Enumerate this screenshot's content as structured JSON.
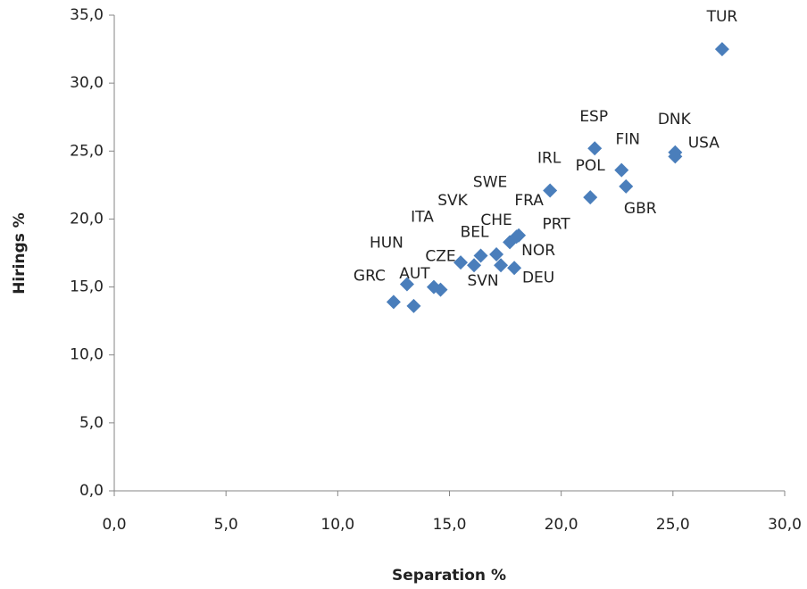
{
  "chart_data": {
    "type": "scatter",
    "x_label": "Separation %",
    "y_label": "Hirings %",
    "color": "#4a7ebb",
    "labels": [
      "GRC",
      "AUT",
      "HUN",
      "ITA",
      "CZE",
      "SVK",
      "SVN",
      "BEL",
      "CHE",
      "NOR",
      "DEU",
      "SWE",
      "FRA",
      "PRT",
      "IRL",
      "POL",
      "ESP",
      "FIN",
      "GBR",
      "DNK",
      "USA",
      "TUR"
    ],
    "x": [
      12.5,
      13.4,
      13.1,
      14.3,
      14.6,
      15.5,
      16.1,
      16.4,
      17.1,
      17.3,
      17.9,
      17.7,
      18.0,
      18.1,
      19.5,
      21.3,
      21.5,
      22.7,
      22.9,
      25.1,
      25.1,
      27.2
    ],
    "values": [
      13.9,
      13.6,
      15.2,
      15.0,
      14.8,
      16.8,
      16.6,
      17.3,
      17.4,
      16.6,
      16.4,
      18.3,
      18.7,
      18.8,
      22.1,
      21.6,
      25.2,
      23.6,
      22.4,
      24.9,
      24.6,
      32.5
    ],
    "xlim": [
      0,
      30
    ],
    "xticks": [
      {
        "value": 0,
        "label": "0,0"
      },
      {
        "value": 5,
        "label": "5,0"
      },
      {
        "value": 10,
        "label": "10,0"
      },
      {
        "value": 15,
        "label": "15,0"
      },
      {
        "value": 20,
        "label": "20,0"
      },
      {
        "value": 25,
        "label": "25,0"
      },
      {
        "value": 30,
        "label": "30,0"
      }
    ],
    "ylim": [
      0,
      35
    ],
    "yticks": [
      {
        "value": 0,
        "label": "0,0"
      },
      {
        "value": 5,
        "label": "5,0"
      },
      {
        "value": 10,
        "label": "10,0"
      },
      {
        "value": 15,
        "label": "15,0"
      },
      {
        "value": 20,
        "label": "20,0"
      },
      {
        "value": 25,
        "label": "25,0"
      },
      {
        "value": 30,
        "label": "30,0"
      },
      {
        "value": 35,
        "label": "35,0"
      }
    ]
  }
}
